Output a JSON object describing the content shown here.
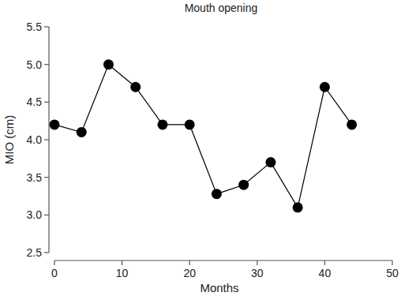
{
  "chart_data": {
    "type": "line",
    "title": "Mouth opening",
    "x_label": "Months",
    "y_label": "MIO (cm)",
    "x": [
      0,
      4,
      8,
      12,
      16,
      20,
      24,
      28,
      32,
      36,
      40,
      44
    ],
    "values": [
      4.2,
      4.1,
      5.0,
      4.7,
      4.2,
      4.2,
      3.28,
      3.4,
      3.7,
      3.1,
      4.7,
      4.2
    ],
    "color": "#000000",
    "marker": "circle",
    "line_style": "solid",
    "grid": false,
    "xlim": [
      0,
      50
    ],
    "xticks": [
      0,
      10,
      20,
      30,
      40,
      50
    ],
    "ylim": [
      2.5,
      5.5
    ],
    "yticks": [
      2.5,
      {
        "value": 3,
        "label": "3.0"
      },
      3.5,
      {
        "value": 4,
        "label": "4.0"
      },
      4.5,
      {
        "value": 5,
        "label": "5.0"
      },
      5.5
    ]
  }
}
